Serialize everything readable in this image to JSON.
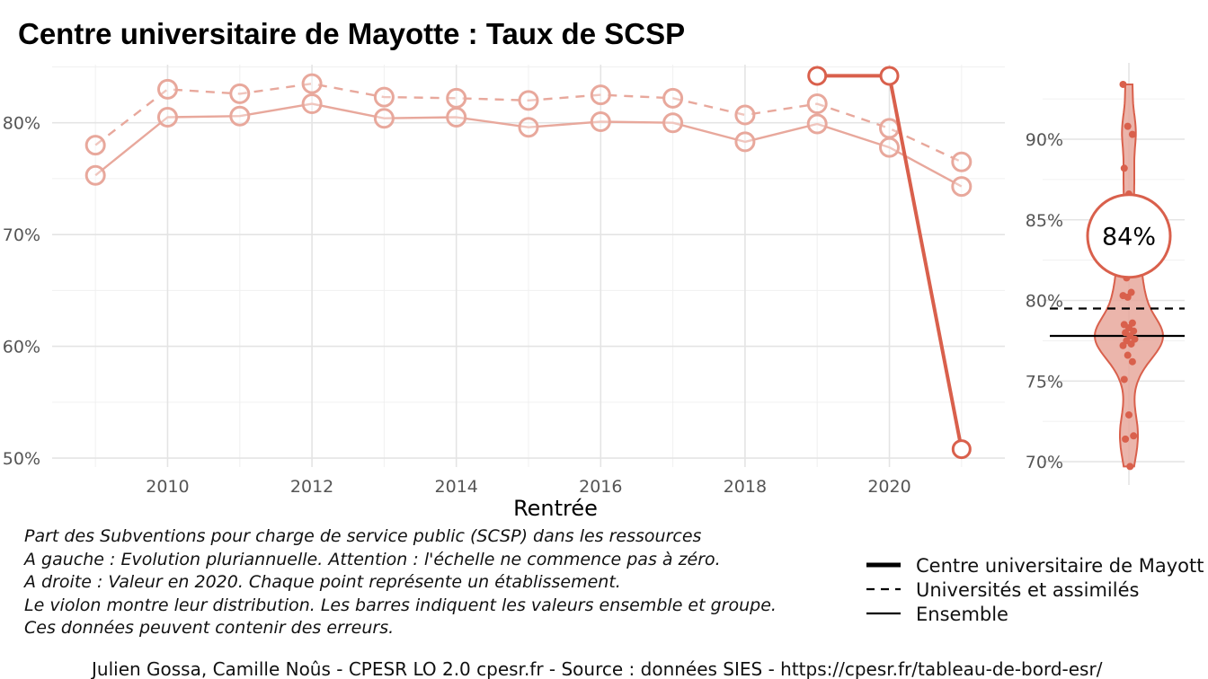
{
  "title": "Centre universitaire de Mayotte  :  Taux de SCSP",
  "chart_data": [
    {
      "type": "line",
      "xlabel": "Rentrée",
      "ylabel": "",
      "x_ticks": [
        "2010",
        "2012",
        "2014",
        "2016",
        "2018",
        "2020"
      ],
      "y_ticks": [
        "50%",
        "60%",
        "70%",
        "80%"
      ],
      "xlim": [
        2008.4,
        2021.6
      ],
      "ylim": [
        49.2,
        85.2
      ],
      "x": [
        2009,
        2010,
        2011,
        2012,
        2013,
        2014,
        2015,
        2016,
        2017,
        2018,
        2019,
        2020,
        2021
      ],
      "series": [
        {
          "name": "Universités et assimilés",
          "style": "dashed",
          "color": "#e8a89c",
          "values": [
            78.0,
            83.0,
            82.6,
            83.5,
            82.3,
            82.2,
            82.0,
            82.5,
            82.2,
            80.7,
            81.7,
            79.5,
            76.5
          ]
        },
        {
          "name": "Ensemble",
          "style": "solid-light",
          "color": "#e8a89c",
          "values": [
            75.3,
            80.5,
            80.6,
            81.7,
            80.4,
            80.5,
            79.6,
            80.1,
            80.0,
            78.3,
            79.9,
            77.8,
            74.3
          ]
        },
        {
          "name": "Centre universitaire de Mayotte",
          "style": "solid-bold",
          "color": "#d9604c",
          "x": [
            2019,
            2020,
            2021
          ],
          "values": [
            84.2,
            84.2,
            50.8
          ]
        }
      ]
    },
    {
      "type": "violin",
      "ylim": [
        69.5,
        93.5
      ],
      "y_ticks": [
        "70%",
        "75%",
        "80%",
        "85%",
        "90%"
      ],
      "highlight_value": 84,
      "highlight_label": "84%",
      "ref_lines": {
        "Universités et assimilés": 79.5,
        "Ensemble": 77.8
      },
      "points": [
        93.4,
        90.8,
        90.3,
        88.2,
        86.6,
        84.4,
        83.6,
        83.0,
        82.6,
        81.4,
        80.5,
        80.3,
        80.2,
        78.6,
        78.5,
        78.3,
        78.1,
        78.0,
        77.8,
        77.6,
        77.5,
        77.3,
        77.2,
        76.6,
        76.2,
        75.1,
        72.9,
        71.6,
        71.4,
        69.7
      ],
      "color": "#d9604c",
      "fill": "#e8a89c"
    }
  ],
  "notes": [
    "Part des Subventions pour charge de service public (SCSP) dans les ressources",
    "A gauche : Evolution pluriannuelle. Attention : l'échelle ne commence pas à zéro.",
    "A droite : Valeur en 2020. Chaque point représente un établissement.",
    "Le violon montre leur distribution. Les barres indiquent les valeurs ensemble et groupe.",
    "Ces données peuvent contenir des erreurs."
  ],
  "legend": [
    {
      "label": "Centre universitaire de Mayott",
      "style": "bold"
    },
    {
      "label": "Universités et assimilés",
      "style": "dashed"
    },
    {
      "label": "Ensemble",
      "style": "solid"
    }
  ],
  "caption": "Julien Gossa, Camille Noûs - CPESR LO 2.0 cpesr.fr - Source : données SIES - https://cpesr.fr/tableau-de-bord-esr/"
}
